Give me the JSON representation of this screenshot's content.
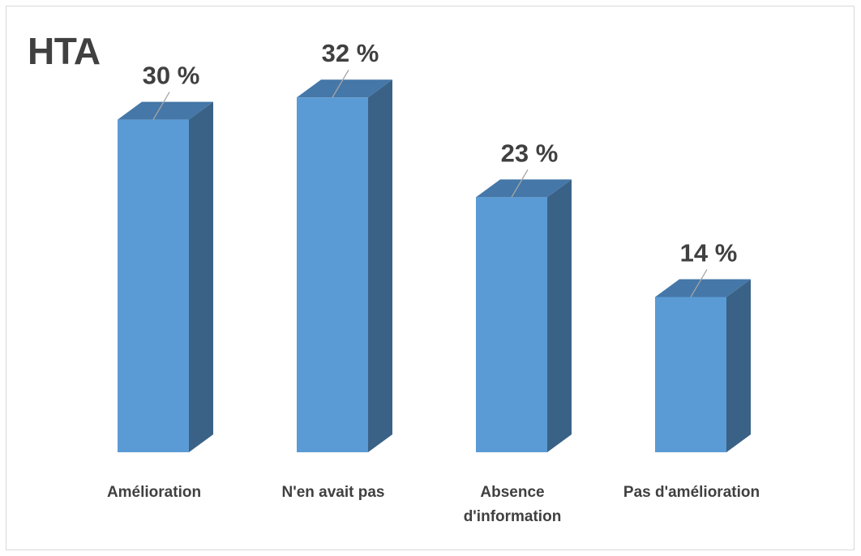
{
  "chart_data": {
    "type": "bar",
    "title": "HTA",
    "categories": [
      [
        "Amélioration"
      ],
      [
        "N'en avait pas"
      ],
      [
        "Absence",
        "d'information"
      ],
      [
        "Pas d'amélioration"
      ]
    ],
    "values": [
      30,
      32,
      23,
      14
    ],
    "data_labels": [
      "30 %",
      "32 %",
      "23 %",
      "14 %"
    ],
    "ylim": [
      0,
      35
    ],
    "grid": false,
    "style": "3d-column",
    "colors": {
      "front": "#5b9bd5",
      "top": "#4577a8",
      "side": "#3a6287",
      "leader": "#a6a6a6",
      "text": "#404040"
    }
  }
}
